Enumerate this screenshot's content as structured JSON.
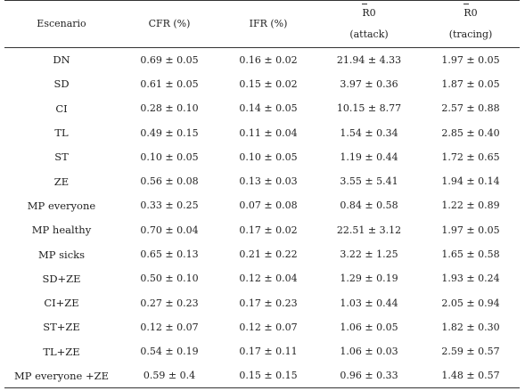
{
  "table": {
    "headers": {
      "scenario": "Escenario",
      "cfr": "CFR (%)",
      "ifr": "IFR (%)",
      "r0_attack_symbol": "R0",
      "r0_attack_sub": "(attack)",
      "r0_tracing_symbol": "R0",
      "r0_tracing_sub": "(tracing)"
    },
    "rows": [
      {
        "scenario": "DN",
        "cfr": "0.69 ± 0.05",
        "ifr": "0.16 ± 0.02",
        "r0_attack": "21.94 ± 4.33",
        "r0_tracing": "1.97 ± 0.05"
      },
      {
        "scenario": "SD",
        "cfr": "0.61 ± 0.05",
        "ifr": "0.15 ± 0.02",
        "r0_attack": "3.97 ± 0.36",
        "r0_tracing": "1.87 ± 0.05"
      },
      {
        "scenario": "CI",
        "cfr": "0.28 ± 0.10",
        "ifr": "0.14 ± 0.05",
        "r0_attack": "10.15 ± 8.77",
        "r0_tracing": "2.57 ± 0.88"
      },
      {
        "scenario": "TL",
        "cfr": "0.49 ± 0.15",
        "ifr": "0.11 ± 0.04",
        "r0_attack": "1.54 ± 0.34",
        "r0_tracing": "2.85 ± 0.40"
      },
      {
        "scenario": "ST",
        "cfr": "0.10 ± 0.05",
        "ifr": "0.10 ± 0.05",
        "r0_attack": "1.19 ± 0.44",
        "r0_tracing": "1.72 ± 0.65"
      },
      {
        "scenario": "ZE",
        "cfr": "0.56 ± 0.08",
        "ifr": "0.13 ± 0.03",
        "r0_attack": "3.55 ± 5.41",
        "r0_tracing": "1.94 ± 0.14"
      },
      {
        "scenario": "MP everyone",
        "cfr": "0.33 ± 0.25",
        "ifr": "0.07 ± 0.08",
        "r0_attack": "0.84 ± 0.58",
        "r0_tracing": "1.22 ± 0.89"
      },
      {
        "scenario": "MP healthy",
        "cfr": "0.70 ± 0.04",
        "ifr": "0.17 ± 0.02",
        "r0_attack": "22.51 ± 3.12",
        "r0_tracing": "1.97 ± 0.05"
      },
      {
        "scenario": "MP sicks",
        "cfr": "0.65 ± 0.13",
        "ifr": "0.21 ± 0.22",
        "r0_attack": "3.22 ± 1.25",
        "r0_tracing": "1.65 ± 0.58"
      },
      {
        "scenario": "SD+ZE",
        "cfr": "0.50 ± 0.10",
        "ifr": "0.12 ± 0.04",
        "r0_attack": "1.29 ± 0.19",
        "r0_tracing": "1.93 ± 0.24"
      },
      {
        "scenario": "CI+ZE",
        "cfr": "0.27 ± 0.23",
        "ifr": "0.17 ± 0.23",
        "r0_attack": "1.03 ± 0.44",
        "r0_tracing": "2.05 ± 0.94"
      },
      {
        "scenario": "ST+ZE",
        "cfr": "0.12 ± 0.07",
        "ifr": "0.12 ± 0.07",
        "r0_attack": "1.06 ± 0.05",
        "r0_tracing": "1.82 ± 0.30"
      },
      {
        "scenario": "TL+ZE",
        "cfr": "0.54 ± 0.19",
        "ifr": "0.17 ± 0.11",
        "r0_attack": "1.06 ± 0.03",
        "r0_tracing": "2.59 ± 0.57"
      },
      {
        "scenario": "MP everyone +ZE",
        "cfr": "0.59 ± 0.4",
        "ifr": "0.15 ± 0.15",
        "r0_attack": "0.96 ± 0.33",
        "r0_tracing": "1.48 ± 0.57"
      }
    ]
  }
}
